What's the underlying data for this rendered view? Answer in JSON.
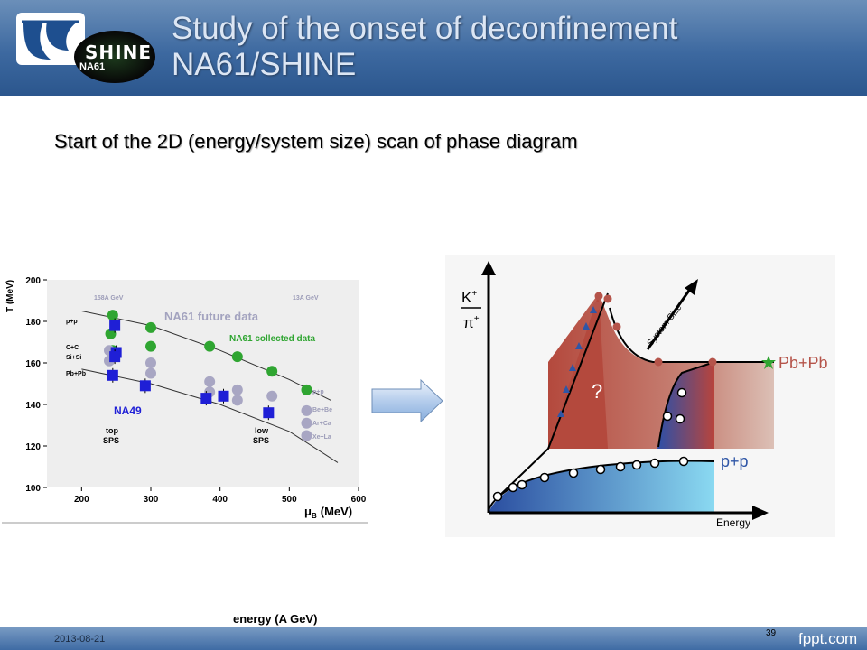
{
  "header": {
    "logo_text": "SHINE",
    "logo_subtext": "NA61",
    "title_line1": "Study of the onset of deconfinement",
    "title_line2": "NA61/SHINE"
  },
  "subtitle": "Start of the 2D (energy/system size) scan of phase diagram",
  "left_chart": {
    "ylabel": "T (MeV)",
    "xlabel": "μ",
    "xlabel_sub": "B",
    "xlabel_unit": "(MeV)",
    "x_ticks": [
      "200",
      "300",
      "400",
      "500",
      "600"
    ],
    "y_ticks": [
      "100",
      "120",
      "140",
      "160",
      "180",
      "200"
    ],
    "label_158": "158A GeV",
    "label_13": "13A GeV",
    "future_label": "NA61 future data",
    "collected_label": "NA61 collected data",
    "na49_label": "NA49",
    "top_sps": [
      "top",
      "SPS"
    ],
    "low_sps": [
      "low",
      "SPS"
    ],
    "left_labels": [
      "p+p",
      "C+C",
      "Si+Si",
      "Pb+Pb"
    ],
    "legend": [
      "p+p",
      "Be+Be",
      "Ar+Ca",
      "Xe+La"
    ],
    "colors": {
      "green": "#2fa531",
      "gray": "#a8a6c3",
      "blue": "#1f1fd6",
      "grid_bg": "#eeeeee"
    }
  },
  "chart_data": [
    {
      "type": "scatter",
      "title": "",
      "xlabel": "μB (MeV)",
      "ylabel": "T (MeV)",
      "xlim": [
        150,
        600
      ],
      "ylim": [
        100,
        200
      ],
      "series": [
        {
          "name": "NA61 collected data",
          "points": [
            [
              245,
              183
            ],
            [
              242,
              174
            ],
            [
              300,
              168
            ],
            [
              385,
              168
            ],
            [
              425,
              163
            ],
            [
              475,
              156
            ],
            [
              525,
              147
            ],
            [
              245,
              166
            ],
            [
              300,
              177
            ]
          ]
        },
        {
          "name": "NA61 future data",
          "points": [
            [
              240,
              166
            ],
            [
              240,
              161
            ],
            [
              300,
              160
            ],
            [
              300,
              155
            ],
            [
              385,
              151
            ],
            [
              385,
              146
            ],
            [
              425,
              147
            ],
            [
              425,
              142
            ],
            [
              475,
              144
            ],
            [
              525,
              137
            ],
            [
              525,
              131
            ],
            [
              525,
              125
            ]
          ]
        },
        {
          "name": "NA49",
          "points": [
            [
              248,
              178
            ],
            [
              250,
              165
            ],
            [
              248,
              163
            ],
            [
              245,
              154
            ],
            [
              292,
              149
            ],
            [
              380,
              143
            ],
            [
              405,
              144
            ],
            [
              470,
              136
            ]
          ]
        }
      ],
      "curves": [
        {
          "points": [
            [
              200,
              185
            ],
            [
              300,
              178
            ],
            [
              400,
              166
            ],
            [
              500,
              152
            ],
            [
              560,
              142
            ]
          ]
        },
        {
          "points": [
            [
              200,
              157
            ],
            [
              300,
              150
            ],
            [
              400,
              140
            ],
            [
              500,
              127
            ],
            [
              570,
              112
            ]
          ]
        }
      ]
    },
    {
      "type": "area",
      "title": "",
      "xlabel": "Energy",
      "ylabel": "K+/π+",
      "series": [
        {
          "name": "Pb+Pb"
        },
        {
          "name": "p+p"
        }
      ]
    }
  ],
  "right_chart": {
    "ylabel_top": "K",
    "ylabel_top_sup": "+",
    "ylabel_bottom": "π",
    "ylabel_bottom_sup": "+",
    "xlabel": "Energy",
    "system_size": "System Size",
    "pbpb": "Pb+Pb",
    "pp": "p+p",
    "question": "?",
    "colors": {
      "red": "#b5544a",
      "blue": "#2f56a6",
      "cyan": "#85d7ef"
    }
  },
  "energy_label": "energy (A GeV)",
  "footer": {
    "date": "2013-08-21",
    "page": "39",
    "brand": "fppt.com"
  }
}
